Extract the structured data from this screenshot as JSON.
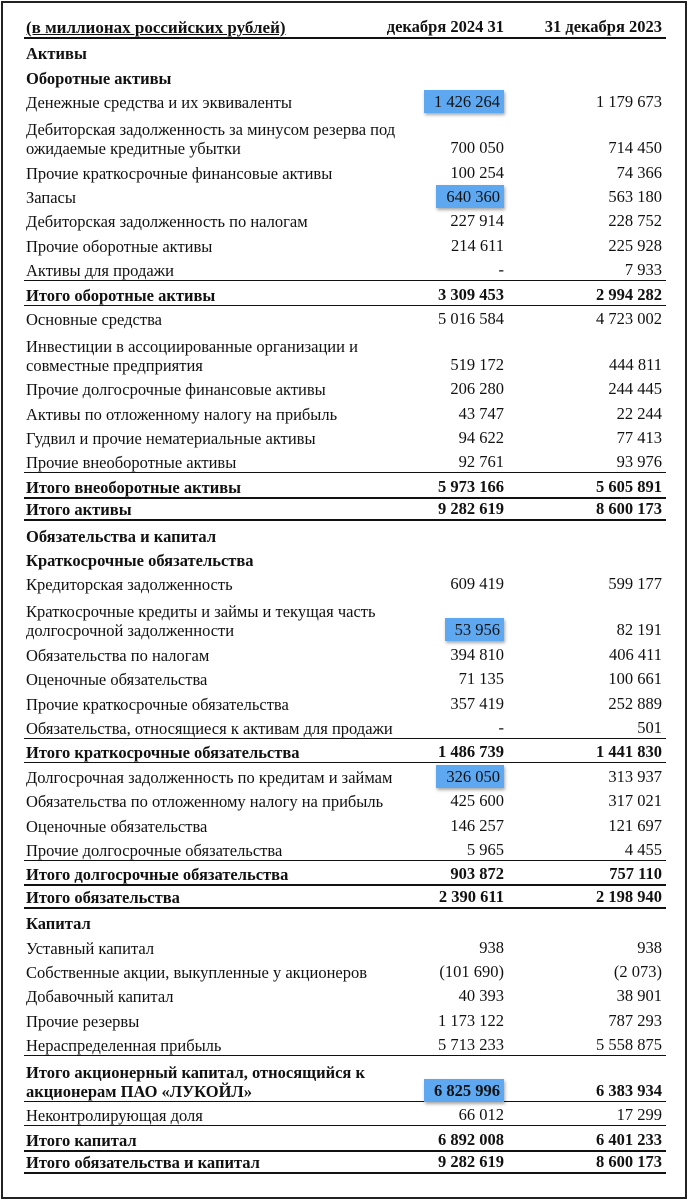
{
  "header": {
    "label": "(в миллионах российских рублей)",
    "col1": "31 декабря 2024",
    "col2": "31 декабря 2023"
  },
  "highlight_color": "#5ea8f2",
  "rows": [
    {
      "label": "Активы",
      "kind": "section"
    },
    {
      "label": "Оборотные активы",
      "kind": "section"
    },
    {
      "label": "Денежные средства и их эквиваленты",
      "v1": "1 426 264",
      "v2": "1 179 673",
      "hl": true
    },
    {
      "label": "Дебиторская задолженность за минусом резерва под ожидаемые кредитные убытки",
      "v1": "700 050",
      "v2": "714 450",
      "tall": true
    },
    {
      "label": "Прочие краткосрочные финансовые активы",
      "v1": "100 254",
      "v2": "74 366"
    },
    {
      "label": "Запасы",
      "v1": "640 360",
      "v2": "563 180",
      "hl": true
    },
    {
      "label": "Дебиторская задолженность по налогам",
      "v1": "227 914",
      "v2": "228 752"
    },
    {
      "label": "Прочие оборотные активы",
      "v1": "214 611",
      "v2": "225 928"
    },
    {
      "label": "Активы для продажи",
      "v1": "-",
      "v2": "7 933"
    },
    {
      "label": "Итого оборотные активы",
      "v1": "3 309 453",
      "v2": "2 994 282",
      "kind": "total"
    },
    {
      "label": "Основные средства",
      "v1": "5 016 584",
      "v2": "4 723 002",
      "kind": "after"
    },
    {
      "label": "Инвестиции в ассоциированные организации и совместные предприятия",
      "v1": "519 172",
      "v2": "444 811",
      "tall": true
    },
    {
      "label": "Прочие долгосрочные финансовые активы",
      "v1": "206 280",
      "v2": "244 445"
    },
    {
      "label": "Активы по отложенному налогу на прибыль",
      "v1": "43 747",
      "v2": "22 244"
    },
    {
      "label": "Гудвил и прочие нематериальные активы",
      "v1": "94 622",
      "v2": "77 413"
    },
    {
      "label": "Прочие внеоборотные активы",
      "v1": "92 761",
      "v2": "93 976"
    },
    {
      "label": "Итого внеоборотные активы",
      "v1": "5 973 166",
      "v2": "5 605 891",
      "kind": "total"
    },
    {
      "label": "Итого активы",
      "v1": "9 282 619",
      "v2": "8 600 173",
      "kind": "grand"
    },
    {
      "label": "Обязательства и капитал",
      "kind": "section"
    },
    {
      "label": "Краткосрочные обязательства",
      "kind": "section"
    },
    {
      "label": "Кредиторская задолженность",
      "v1": "609 419",
      "v2": "599 177"
    },
    {
      "label": "Краткосрочные кредиты и займы и текущая часть долгосрочной задолженности",
      "v1": "53 956",
      "v2": "82 191",
      "tall": true,
      "hl": true
    },
    {
      "label": "Обязательства по налогам",
      "v1": "394 810",
      "v2": "406 411"
    },
    {
      "label": "Оценочные обязательства",
      "v1": "71 135",
      "v2": "100 661"
    },
    {
      "label": "Прочие краткосрочные обязательства",
      "v1": "357 419",
      "v2": "252 889"
    },
    {
      "label": "Обязательства, относящиеся к активам для продажи",
      "v1": "-",
      "v2": "501"
    },
    {
      "label": "Итого краткосрочные обязательства",
      "v1": "1 486 739",
      "v2": "1 441 830",
      "kind": "total"
    },
    {
      "label": "Долгосрочная задолженность по кредитам и займам",
      "v1": "326 050",
      "v2": "313 937",
      "hl": true,
      "kind": "after"
    },
    {
      "label": "Обязательства по отложенному налогу на прибыль",
      "v1": "425 600",
      "v2": "317 021"
    },
    {
      "label": "Оценочные обязательства",
      "v1": "146 257",
      "v2": "121 697"
    },
    {
      "label": "Прочие долгосрочные обязательства",
      "v1": "5 965",
      "v2": "4 455"
    },
    {
      "label": "Итого долгосрочные обязательства",
      "v1": "903 872",
      "v2": "757 110",
      "kind": "total"
    },
    {
      "label": "Итого обязательства",
      "v1": "2 390 611",
      "v2": "2 198 940",
      "kind": "grand"
    },
    {
      "label": "Капитал",
      "kind": "section"
    },
    {
      "label": "Уставный капитал",
      "v1": "938",
      "v2": "938"
    },
    {
      "label": "Собственные акции, выкупленные у акционеров",
      "v1": "(101 690)",
      "v2": "(2 073)"
    },
    {
      "label": "Добавочный капитал",
      "v1": "40 393",
      "v2": "38 901"
    },
    {
      "label": "Прочие резервы",
      "v1": "1 173 122",
      "v2": "787 293"
    },
    {
      "label": "Нераспределенная прибыль",
      "v1": "5 713 233",
      "v2": "5 558 875"
    },
    {
      "label": "Итого акционерный капитал, относящийся к акционерам ПАО «ЛУКОЙЛ»",
      "v1": "6 825 996",
      "v2": "6 383 934",
      "tall": true,
      "hl": true,
      "kind": "total"
    },
    {
      "label": "Неконтролирующая доля",
      "v1": "66 012",
      "v2": "17 299",
      "kind": "after"
    },
    {
      "label": "Итого капитал",
      "v1": "6 892 008",
      "v2": "6 401 233",
      "kind": "total"
    },
    {
      "label": "Итого обязательства и капитал",
      "v1": "9 282 619",
      "v2": "8 600 173",
      "kind": "grand"
    }
  ]
}
